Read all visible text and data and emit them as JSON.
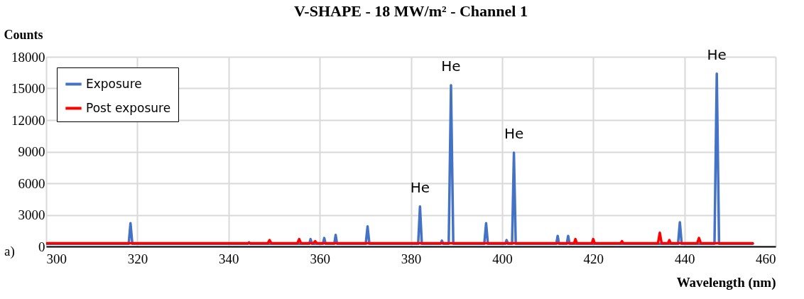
{
  "chart_data": {
    "type": "line",
    "title": "V-SHAPE - 18 MW/m² - Channel 1",
    "xlabel": "Wavelength (nm)",
    "ylabel": "Counts",
    "xlim": [
      300,
      460
    ],
    "xticks": [
      300,
      320,
      340,
      360,
      380,
      400,
      420,
      440,
      460
    ],
    "ylim": [
      0,
      18000
    ],
    "yticks": [
      0,
      3000,
      6000,
      9000,
      12000,
      15000,
      18000
    ],
    "grid": true,
    "legend": "top left",
    "marker": "none",
    "line_style": "solid",
    "annotations": [
      {
        "text": "He",
        "x": 382,
        "y": 3800
      },
      {
        "text": "He",
        "x": 388.8,
        "y": 15300
      },
      {
        "text": "He",
        "x": 402.6,
        "y": 8900
      },
      {
        "text": "He",
        "x": 447.1,
        "y": 16400
      },
      "a)"
    ],
    "series": [
      {
        "name": "Exposure",
        "color": "#4472c4",
        "x": [
          300,
          318.1,
          318.5,
          318.9,
          344.2,
          344.5,
          344.8,
          357.7,
          358,
          358.3,
          360.7,
          361,
          361.3,
          363.2,
          363.5,
          363.8,
          370.1,
          370.5,
          370.9,
          381.6,
          382,
          382.4,
          386.5,
          386.8,
          387.1,
          388.3,
          388.8,
          389.3,
          396.1,
          396.5,
          396.9,
          400.7,
          401,
          401.3,
          402.2,
          402.6,
          403,
          411.9,
          412.2,
          412.5,
          414.2,
          414.5,
          414.8,
          438.6,
          439,
          439.4,
          446.6,
          447.1,
          447.6,
          455
        ],
        "values": [
          250,
          250,
          2200,
          250,
          250,
          400,
          250,
          250,
          700,
          250,
          250,
          800,
          250,
          250,
          1100,
          250,
          250,
          1900,
          250,
          250,
          3800,
          250,
          250,
          550,
          250,
          250,
          15300,
          250,
          250,
          2200,
          250,
          250,
          600,
          250,
          250,
          8900,
          250,
          250,
          1000,
          250,
          250,
          1000,
          250,
          250,
          2300,
          250,
          250,
          16400,
          250,
          250
        ]
      },
      {
        "name": "Post exposure",
        "color": "#ff0000",
        "x": [
          300,
          348.6,
          349,
          349.4,
          355.1,
          355.5,
          355.9,
          358.6,
          359,
          359.4,
          415.8,
          416.1,
          416.4,
          419.7,
          420,
          420.3,
          426,
          426.3,
          426.6,
          434.2,
          434.6,
          435,
          436.4,
          436.7,
          437,
          442.8,
          443.2,
          443.6,
          455
        ],
        "values": [
          300,
          300,
          600,
          300,
          300,
          700,
          300,
          300,
          500,
          300,
          300,
          700,
          300,
          300,
          700,
          300,
          300,
          500,
          300,
          300,
          1300,
          300,
          300,
          600,
          300,
          300,
          800,
          300,
          300
        ]
      }
    ]
  }
}
